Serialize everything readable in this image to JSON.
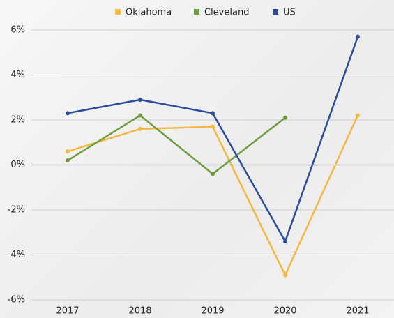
{
  "chart_data": {
    "type": "line",
    "categories": [
      "2017",
      "2018",
      "2019",
      "2020",
      "2021"
    ],
    "series": [
      {
        "name": "Oklahoma",
        "color": "#f5b73f",
        "values": [
          0.6,
          1.6,
          1.7,
          -4.9,
          2.2
        ]
      },
      {
        "name": "Cleveland",
        "color": "#6f9c3d",
        "values": [
          0.2,
          2.2,
          -0.4,
          2.1,
          null
        ]
      },
      {
        "name": "US",
        "color": "#2b4c9e",
        "values": [
          2.3,
          2.9,
          2.3,
          -3.4,
          5.7
        ]
      }
    ],
    "ylim": [
      -6,
      6
    ],
    "yticks": [
      {
        "value": -6,
        "label": "-6%"
      },
      {
        "value": -4,
        "label": "-4%"
      },
      {
        "value": -2,
        "label": "-2%"
      },
      {
        "value": 0,
        "label": "0%"
      },
      {
        "value": 2,
        "label": "2%"
      },
      {
        "value": 4,
        "label": "4%"
      },
      {
        "value": 6,
        "label": "6%"
      }
    ],
    "grid": true,
    "legend": "top"
  }
}
